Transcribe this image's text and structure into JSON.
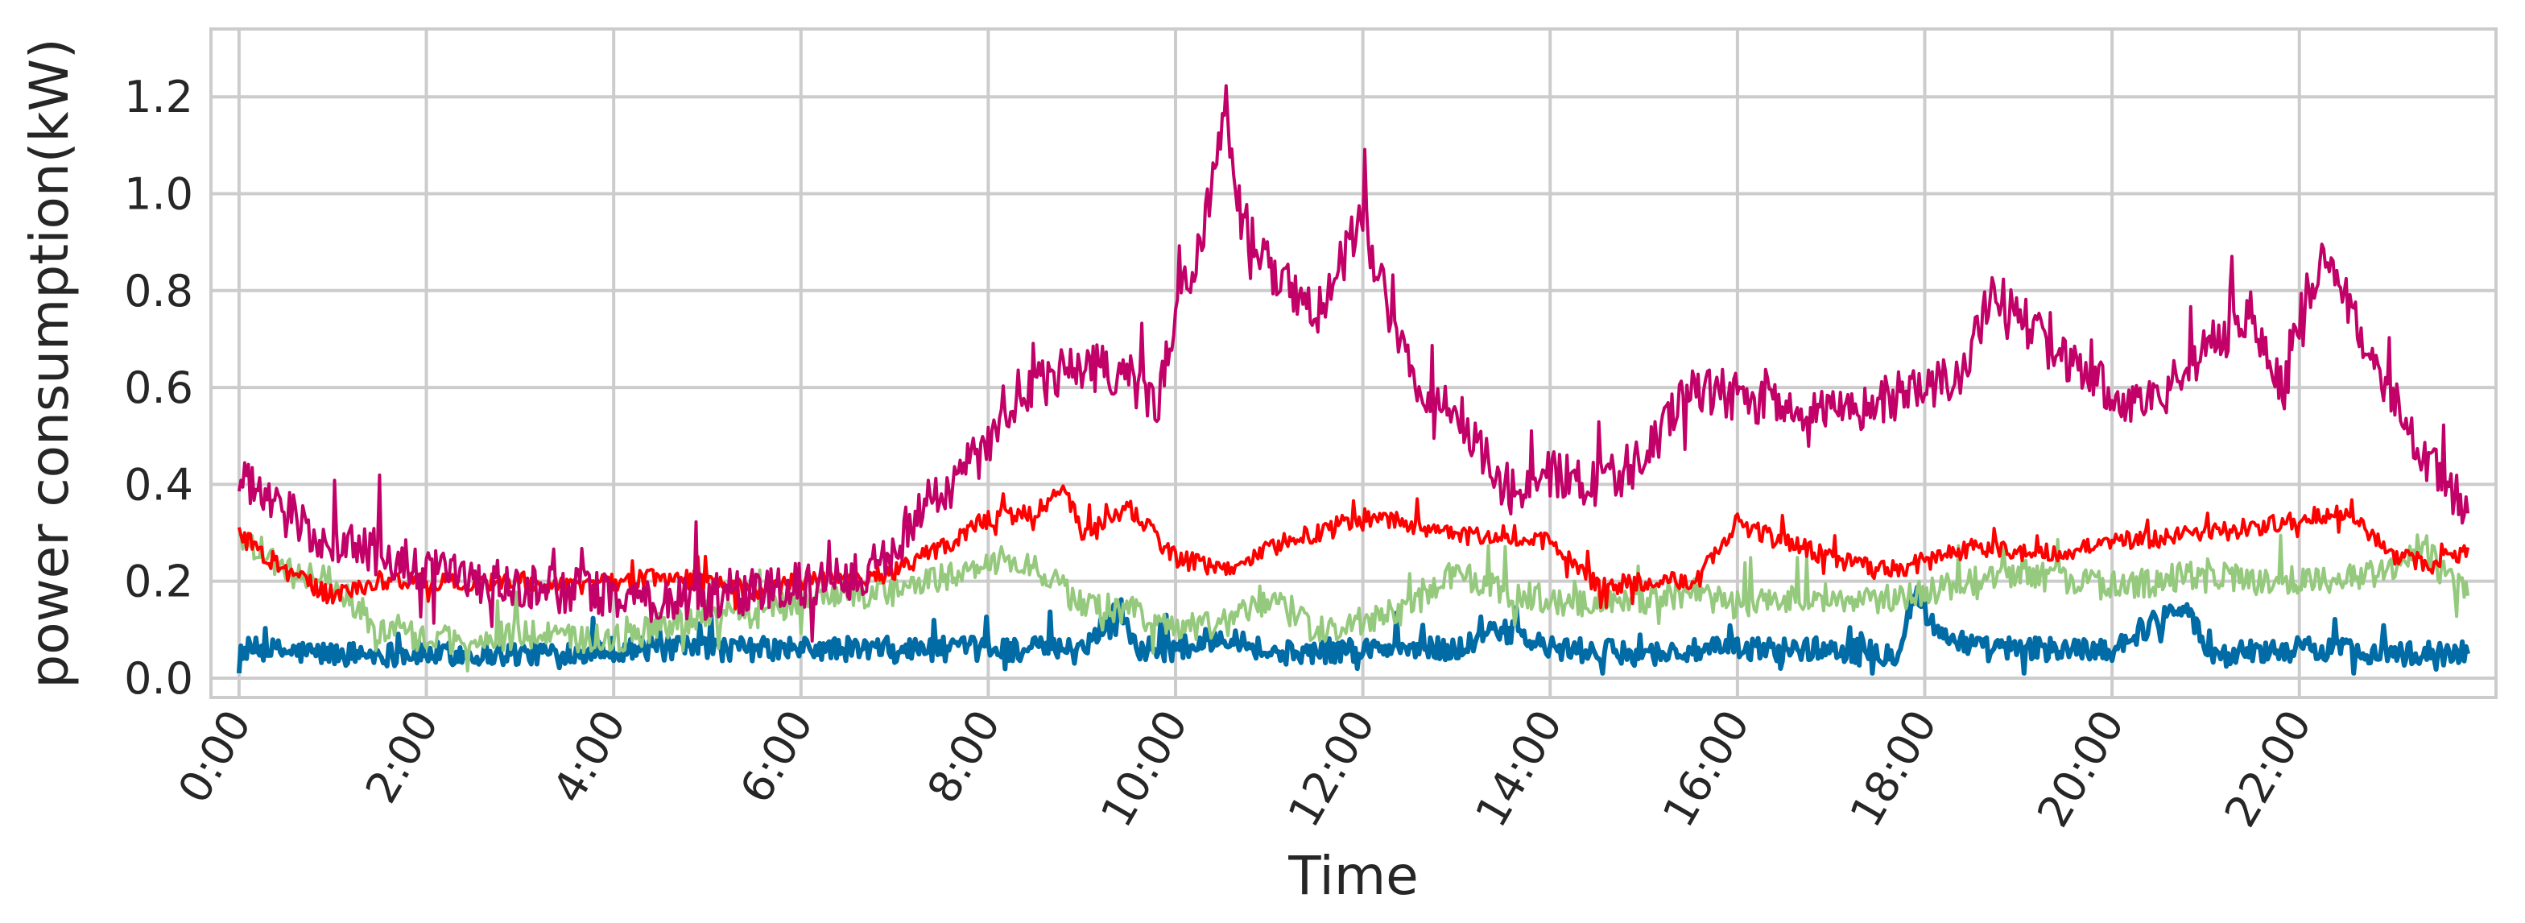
{
  "chart_data": {
    "type": "line",
    "title": "",
    "xlabel": "Time",
    "ylabel": "power consumption(kW)",
    "xlim": [
      0,
      24
    ],
    "ylim": [
      -0.04,
      1.34
    ],
    "grid": true,
    "legend": "none",
    "x_tick_labels": [
      "0:00",
      "2:00",
      "4:00",
      "6:00",
      "8:00",
      "10:00",
      "12:00",
      "14:00",
      "16:00",
      "18:00",
      "20:00",
      "22:00"
    ],
    "x_tick_values": [
      0,
      2,
      4,
      6,
      8,
      10,
      12,
      14,
      16,
      18,
      20,
      22
    ],
    "y_tick_labels": [
      "0.0",
      "0.2",
      "0.4",
      "0.6",
      "0.8",
      "1.0",
      "1.2"
    ],
    "y_tick_values": [
      0.0,
      0.2,
      0.4,
      0.6,
      0.8,
      1.0,
      1.2
    ],
    "colors": {
      "axes_edge": "#cccccc",
      "grid": "#cccccc",
      "text": "#262626"
    },
    "series": [
      {
        "color": "#006ba4",
        "noise": 0.025,
        "points": [
          [
            0,
            0.06
          ],
          [
            1,
            0.05
          ],
          [
            2,
            0.05
          ],
          [
            3,
            0.05
          ],
          [
            4,
            0.06
          ],
          [
            5,
            0.06
          ],
          [
            6,
            0.06
          ],
          [
            7,
            0.06
          ],
          [
            8,
            0.06
          ],
          [
            9,
            0.06
          ],
          [
            9.4,
            0.15
          ],
          [
            9.6,
            0.06
          ],
          [
            10,
            0.06
          ],
          [
            10.6,
            0.09
          ],
          [
            11,
            0.05
          ],
          [
            12,
            0.06
          ],
          [
            13,
            0.06
          ],
          [
            13.5,
            0.1
          ],
          [
            14,
            0.06
          ],
          [
            15,
            0.05
          ],
          [
            16,
            0.06
          ],
          [
            17,
            0.06
          ],
          [
            17.7,
            0.05
          ],
          [
            17.9,
            0.18
          ],
          [
            18.1,
            0.1
          ],
          [
            18.6,
            0.06
          ],
          [
            19,
            0.06
          ],
          [
            20,
            0.06
          ],
          [
            20.8,
            0.16
          ],
          [
            21,
            0.05
          ],
          [
            22,
            0.06
          ],
          [
            22.5,
            0.06
          ],
          [
            23,
            0.05
          ],
          [
            23.8,
            0.05
          ]
        ]
      },
      {
        "color": "#95c97d",
        "noise": 0.03,
        "points": [
          [
            0,
            0.3
          ],
          [
            0.5,
            0.22
          ],
          [
            1,
            0.2
          ],
          [
            1.5,
            0.1
          ],
          [
            2,
            0.08
          ],
          [
            2.5,
            0.08
          ],
          [
            3,
            0.09
          ],
          [
            3.5,
            0.08
          ],
          [
            4,
            0.08
          ],
          [
            5,
            0.13
          ],
          [
            5.5,
            0.13
          ],
          [
            6,
            0.16
          ],
          [
            6.5,
            0.17
          ],
          [
            7,
            0.18
          ],
          [
            7.3,
            0.2
          ],
          [
            7.8,
            0.22
          ],
          [
            8.2,
            0.25
          ],
          [
            8.6,
            0.22
          ],
          [
            9,
            0.15
          ],
          [
            9.5,
            0.14
          ],
          [
            10,
            0.1
          ],
          [
            10.5,
            0.11
          ],
          [
            11,
            0.16
          ],
          [
            11.5,
            0.1
          ],
          [
            12,
            0.12
          ],
          [
            12.5,
            0.14
          ],
          [
            13,
            0.22
          ],
          [
            13.5,
            0.18
          ],
          [
            14,
            0.16
          ],
          [
            14.5,
            0.15
          ],
          [
            15,
            0.16
          ],
          [
            15.5,
            0.18
          ],
          [
            16,
            0.15
          ],
          [
            16.5,
            0.16
          ],
          [
            17,
            0.17
          ],
          [
            17.5,
            0.16
          ],
          [
            18,
            0.18
          ],
          [
            18.5,
            0.2
          ],
          [
            19,
            0.22
          ],
          [
            19.5,
            0.2
          ],
          [
            20,
            0.19
          ],
          [
            20.5,
            0.2
          ],
          [
            21,
            0.22
          ],
          [
            21.5,
            0.2
          ],
          [
            22,
            0.2
          ],
          [
            22.5,
            0.21
          ],
          [
            23,
            0.22
          ],
          [
            23.3,
            0.28
          ],
          [
            23.6,
            0.2
          ],
          [
            23.8,
            0.17
          ]
        ]
      },
      {
        "color": "#ff0000",
        "noise": 0.02,
        "points": [
          [
            0,
            0.3
          ],
          [
            0.5,
            0.22
          ],
          [
            1,
            0.17
          ],
          [
            1.5,
            0.2
          ],
          [
            2,
            0.2
          ],
          [
            2.5,
            0.2
          ],
          [
            3,
            0.2
          ],
          [
            3.5,
            0.19
          ],
          [
            4,
            0.2
          ],
          [
            4.5,
            0.21
          ],
          [
            5,
            0.2
          ],
          [
            5.5,
            0.18
          ],
          [
            6,
            0.2
          ],
          [
            6.5,
            0.2
          ],
          [
            7,
            0.22
          ],
          [
            7.5,
            0.27
          ],
          [
            8,
            0.33
          ],
          [
            8.5,
            0.34
          ],
          [
            8.8,
            0.4
          ],
          [
            9,
            0.3
          ],
          [
            9.5,
            0.35
          ],
          [
            10,
            0.25
          ],
          [
            10.5,
            0.22
          ],
          [
            11,
            0.27
          ],
          [
            11.5,
            0.3
          ],
          [
            12,
            0.33
          ],
          [
            12.5,
            0.32
          ],
          [
            13,
            0.29
          ],
          [
            13.5,
            0.3
          ],
          [
            14,
            0.28
          ],
          [
            14.5,
            0.19
          ],
          [
            15,
            0.2
          ],
          [
            15.5,
            0.2
          ],
          [
            16,
            0.32
          ],
          [
            16.5,
            0.28
          ],
          [
            17,
            0.25
          ],
          [
            17.5,
            0.22
          ],
          [
            18,
            0.24
          ],
          [
            18.5,
            0.27
          ],
          [
            19,
            0.26
          ],
          [
            19.5,
            0.26
          ],
          [
            20,
            0.28
          ],
          [
            20.5,
            0.29
          ],
          [
            21,
            0.3
          ],
          [
            21.5,
            0.31
          ],
          [
            22,
            0.33
          ],
          [
            22.5,
            0.34
          ],
          [
            23,
            0.25
          ],
          [
            23.5,
            0.23
          ],
          [
            23.8,
            0.27
          ]
        ]
      },
      {
        "color": "#c10068",
        "noise": 0.05,
        "points": [
          [
            0,
            0.42
          ],
          [
            0.3,
            0.36
          ],
          [
            0.6,
            0.33
          ],
          [
            1,
            0.28
          ],
          [
            1.5,
            0.26
          ],
          [
            2,
            0.22
          ],
          [
            2.5,
            0.2
          ],
          [
            3,
            0.19
          ],
          [
            3.5,
            0.18
          ],
          [
            4,
            0.17
          ],
          [
            4.5,
            0.16
          ],
          [
            5,
            0.17
          ],
          [
            5.5,
            0.18
          ],
          [
            6,
            0.19
          ],
          [
            6.5,
            0.2
          ],
          [
            7,
            0.25
          ],
          [
            7.3,
            0.35
          ],
          [
            7.6,
            0.4
          ],
          [
            8,
            0.48
          ],
          [
            8.5,
            0.6
          ],
          [
            9,
            0.65
          ],
          [
            9.5,
            0.62
          ],
          [
            9.8,
            0.55
          ],
          [
            10,
            0.75
          ],
          [
            10.3,
            0.9
          ],
          [
            10.5,
            1.2
          ],
          [
            10.7,
            0.95
          ],
          [
            11,
            0.85
          ],
          [
            11.5,
            0.75
          ],
          [
            12,
            0.95
          ],
          [
            12.3,
            0.75
          ],
          [
            12.6,
            0.6
          ],
          [
            13,
            0.55
          ],
          [
            13.3,
            0.45
          ],
          [
            13.6,
            0.38
          ],
          [
            14,
            0.42
          ],
          [
            14.5,
            0.4
          ],
          [
            15,
            0.45
          ],
          [
            15.3,
            0.55
          ],
          [
            15.6,
            0.6
          ],
          [
            16,
            0.58
          ],
          [
            16.5,
            0.57
          ],
          [
            17,
            0.55
          ],
          [
            17.5,
            0.57
          ],
          [
            18,
            0.6
          ],
          [
            18.4,
            0.62
          ],
          [
            18.7,
            0.8
          ],
          [
            19,
            0.75
          ],
          [
            19.5,
            0.65
          ],
          [
            20,
            0.6
          ],
          [
            20.3,
            0.55
          ],
          [
            20.6,
            0.6
          ],
          [
            21,
            0.68
          ],
          [
            21.5,
            0.75
          ],
          [
            21.8,
            0.6
          ],
          [
            22,
            0.75
          ],
          [
            22.3,
            0.88
          ],
          [
            22.7,
            0.7
          ],
          [
            23,
            0.55
          ],
          [
            23.5,
            0.42
          ],
          [
            23.8,
            0.34
          ]
        ]
      }
    ]
  }
}
